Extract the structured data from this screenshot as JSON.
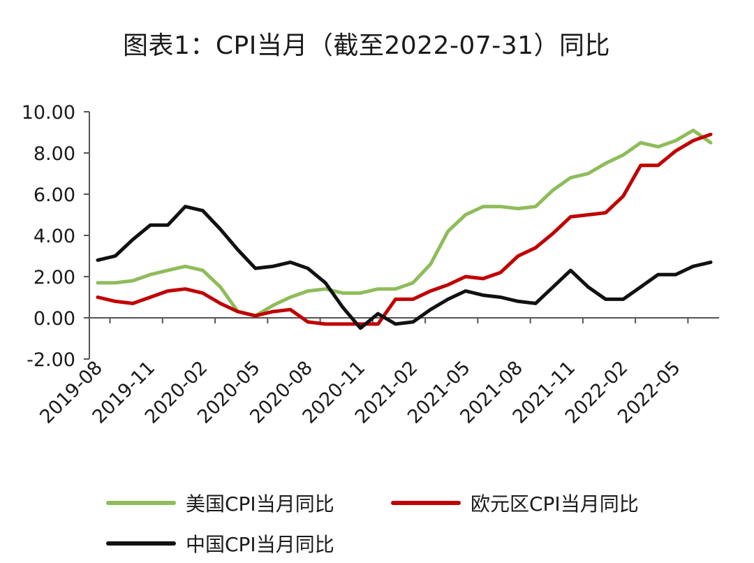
{
  "chart_data": {
    "type": "line",
    "title": "图表1：CPI当月（截至2022-07-31）同比",
    "ylim": [
      -2,
      10
    ],
    "yticks": [
      "10.00",
      "8.00",
      "6.00",
      "4.00",
      "2.00",
      "0.00",
      "-2.00"
    ],
    "ytick_values": [
      10,
      8,
      6,
      4,
      2,
      0,
      -2
    ],
    "x": [
      "2019-08",
      "2019-09",
      "2019-10",
      "2019-11",
      "2019-12",
      "2020-01",
      "2020-02",
      "2020-03",
      "2020-04",
      "2020-05",
      "2020-06",
      "2020-07",
      "2020-08",
      "2020-09",
      "2020-10",
      "2020-11",
      "2020-12",
      "2021-01",
      "2021-02",
      "2021-03",
      "2021-04",
      "2021-05",
      "2021-06",
      "2021-07",
      "2021-08",
      "2021-09",
      "2021-10",
      "2021-11",
      "2021-12",
      "2022-01",
      "2022-02",
      "2022-03",
      "2022-04",
      "2022-05",
      "2022-06",
      "2022-07"
    ],
    "xtick_labels": [
      "2019-08",
      "2019-11",
      "2020-02",
      "2020-05",
      "2020-08",
      "2020-11",
      "2021-02",
      "2021-05",
      "2021-08",
      "2021-11",
      "2022-02",
      "2022-05"
    ],
    "grid": false,
    "legend_position": "bottom",
    "series": [
      {
        "name": "美国CPI当月同比",
        "color": "#8fbc5a",
        "values": [
          1.7,
          1.7,
          1.8,
          2.1,
          2.3,
          2.5,
          2.3,
          1.5,
          0.3,
          0.1,
          0.6,
          1.0,
          1.3,
          1.4,
          1.2,
          1.2,
          1.4,
          1.4,
          1.7,
          2.6,
          4.2,
          5.0,
          5.4,
          5.4,
          5.3,
          5.4,
          6.2,
          6.8,
          7.0,
          7.5,
          7.9,
          8.5,
          8.3,
          8.6,
          9.1,
          8.5
        ]
      },
      {
        "name": "欧元区CPI当月同比",
        "color": "#c00000",
        "values": [
          1.0,
          0.8,
          0.7,
          1.0,
          1.3,
          1.4,
          1.2,
          0.7,
          0.3,
          0.1,
          0.3,
          0.4,
          -0.2,
          -0.3,
          -0.3,
          -0.3,
          -0.3,
          0.9,
          0.9,
          1.3,
          1.6,
          2.0,
          1.9,
          2.2,
          3.0,
          3.4,
          4.1,
          4.9,
          5.0,
          5.1,
          5.9,
          7.4,
          7.4,
          8.1,
          8.6,
          8.9
        ]
      },
      {
        "name": "中国CPI当月同比",
        "color": "#111111",
        "values": [
          2.8,
          3.0,
          3.8,
          4.5,
          4.5,
          5.4,
          5.2,
          4.3,
          3.3,
          2.4,
          2.5,
          2.7,
          2.4,
          1.7,
          0.5,
          -0.5,
          0.2,
          -0.3,
          -0.2,
          0.4,
          0.9,
          1.3,
          1.1,
          1.0,
          0.8,
          0.7,
          1.5,
          2.3,
          1.5,
          0.9,
          0.9,
          1.5,
          2.1,
          2.1,
          2.5,
          2.7
        ]
      }
    ]
  }
}
